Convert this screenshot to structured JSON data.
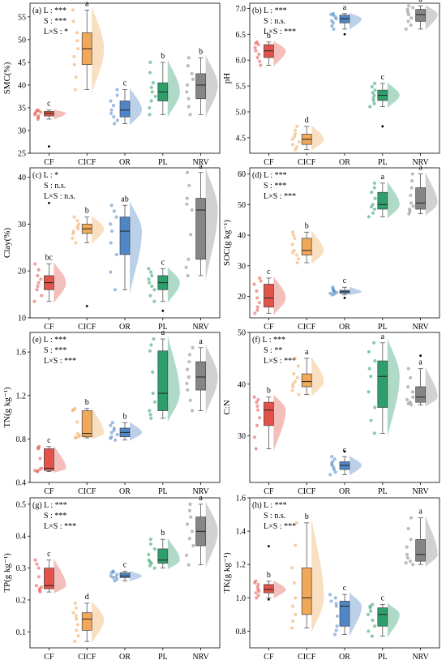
{
  "categories": [
    "CF",
    "CICF",
    "OR",
    "PL",
    "NRV"
  ],
  "colors": {
    "CF": "#e2534b",
    "CICF": "#f0a85a",
    "OR": "#4f86c6",
    "PL": "#2e9e6b",
    "NRV": "#858585"
  },
  "chart_data": [
    {
      "type": "box",
      "panel_label": "(a)",
      "ylabel": "SMC(%)",
      "ylim": [
        25,
        58
      ],
      "yticks": [
        25,
        30,
        35,
        40,
        45,
        50,
        55
      ],
      "stats": [
        "L : ***",
        "S : ***",
        "L×S : *"
      ],
      "categories": [
        "CF",
        "CICF",
        "OR",
        "PL",
        "NRV"
      ],
      "boxes": [
        {
          "q1": 33.2,
          "median": 33.8,
          "q3": 34.2,
          "low": 32.5,
          "high": 34.5,
          "outliers": [
            26.5
          ],
          "letter": "c"
        },
        {
          "q1": 44.5,
          "median": 48,
          "q3": 51.5,
          "low": 39,
          "high": 56.5,
          "outliers": [],
          "letter": "a"
        },
        {
          "q1": 33,
          "median": 34.5,
          "q3": 36.5,
          "low": 31.5,
          "high": 39,
          "outliers": [],
          "letter": "c"
        },
        {
          "q1": 36.5,
          "median": 38.5,
          "q3": 40.5,
          "low": 33.5,
          "high": 45,
          "outliers": [],
          "letter": "b"
        },
        {
          "q1": 37,
          "median": 40,
          "q3": 42.5,
          "low": 33.5,
          "high": 46,
          "outliers": [],
          "letter": "b"
        }
      ]
    },
    {
      "type": "box",
      "panel_label": "(b)",
      "ylabel": "pH",
      "ylim": [
        4.2,
        7.1
      ],
      "yticks": [
        4.5,
        5.0,
        5.5,
        6.0,
        6.5,
        7.0
      ],
      "stats": [
        "L : ***",
        "S : n.s.",
        "L×S : ***"
      ],
      "categories": [
        "CF",
        "CICF",
        "OR",
        "PL",
        "NRV"
      ],
      "boxes": [
        {
          "q1": 6.05,
          "median": 6.18,
          "q3": 6.3,
          "low": 5.9,
          "high": 6.35,
          "outliers": [],
          "letter": "b"
        },
        {
          "q1": 4.37,
          "median": 4.47,
          "q3": 4.57,
          "low": 4.27,
          "high": 4.72,
          "outliers": [],
          "letter": "d"
        },
        {
          "q1": 6.72,
          "median": 6.8,
          "q3": 6.87,
          "low": 6.6,
          "high": 6.9,
          "outliers": [
            6.5
          ],
          "letter": "a"
        },
        {
          "q1": 5.22,
          "median": 5.32,
          "q3": 5.42,
          "low": 5.1,
          "high": 5.55,
          "outliers": [
            4.72
          ],
          "letter": "c"
        },
        {
          "q1": 6.75,
          "median": 6.88,
          "q3": 6.98,
          "low": 6.6,
          "high": 7.05,
          "outliers": [],
          "letter": "a"
        }
      ]
    },
    {
      "type": "box",
      "panel_label": "(c)",
      "ylabel": "Clay(%)",
      "ylim": [
        10,
        42
      ],
      "yticks": [
        10,
        20,
        30,
        40
      ],
      "stats": [
        "L : *",
        "S : n.s.",
        "L×S : n.s."
      ],
      "categories": [
        "CF",
        "CICF",
        "OR",
        "PL",
        "NRV"
      ],
      "boxes": [
        {
          "q1": 16,
          "median": 17.5,
          "q3": 19,
          "low": 13.5,
          "high": 21.5,
          "outliers": [
            34.5
          ],
          "letter": "bc"
        },
        {
          "q1": 28,
          "median": 29,
          "q3": 30,
          "low": 26,
          "high": 31.5,
          "outliers": [
            12.5
          ],
          "letter": "b"
        },
        {
          "q1": 23.5,
          "median": 28.5,
          "q3": 31.5,
          "low": 16,
          "high": 34,
          "outliers": [],
          "letter": "ab"
        },
        {
          "q1": 16,
          "median": 17.5,
          "q3": 19,
          "low": 13.5,
          "high": 20.5,
          "outliers": [
            11.5
          ],
          "letter": "c"
        },
        {
          "q1": 22.5,
          "median": 33,
          "q3": 35.5,
          "low": 19,
          "high": 41,
          "outliers": [],
          "letter": "a"
        }
      ]
    },
    {
      "type": "box",
      "panel_label": "(d)",
      "ylabel": "SOC(g kg⁻¹)",
      "ylim": [
        13,
        62
      ],
      "yticks": [
        20,
        30,
        40,
        50,
        60
      ],
      "stats": [
        "L : ***",
        "S : ***",
        "L×S : ***"
      ],
      "categories": [
        "CF",
        "CICF",
        "OR",
        "PL",
        "NRV"
      ],
      "boxes": [
        {
          "q1": 16.5,
          "median": 19.5,
          "q3": 24,
          "low": 14.5,
          "high": 26,
          "outliers": [],
          "letter": "c"
        },
        {
          "q1": 33.5,
          "median": 35,
          "q3": 39,
          "low": 31,
          "high": 41,
          "outliers": [],
          "letter": "b"
        },
        {
          "q1": 21,
          "median": 21.5,
          "q3": 22,
          "low": 20.5,
          "high": 23,
          "outliers": [
            19.5
          ],
          "letter": "c"
        },
        {
          "q1": 48.5,
          "median": 50,
          "q3": 54,
          "low": 46,
          "high": 57,
          "outliers": [],
          "letter": "a"
        },
        {
          "q1": 48.5,
          "median": 50.5,
          "q3": 55.5,
          "low": 47,
          "high": 60,
          "outliers": [],
          "letter": "a"
        }
      ]
    },
    {
      "type": "box",
      "panel_label": "(e)",
      "ylabel": "TN(g kg⁻¹)",
      "ylim": [
        0.4,
        1.78
      ],
      "yticks": [
        0.4,
        0.8,
        1.2,
        1.6
      ],
      "stats": [
        "L : ***",
        "S : ***",
        "L×S : ***"
      ],
      "categories": [
        "CF",
        "CICF",
        "OR",
        "PL",
        "NRV"
      ],
      "boxes": [
        {
          "q1": 0.51,
          "median": 0.53,
          "q3": 0.71,
          "low": 0.5,
          "high": 0.73,
          "outliers": [],
          "letter": "c"
        },
        {
          "q1": 0.82,
          "median": 0.85,
          "q3": 1.06,
          "low": 0.81,
          "high": 1.08,
          "outliers": [],
          "letter": "b"
        },
        {
          "q1": 0.82,
          "median": 0.86,
          "q3": 0.9,
          "low": 0.79,
          "high": 0.95,
          "outliers": [],
          "letter": "b"
        },
        {
          "q1": 1.06,
          "median": 1.22,
          "q3": 1.61,
          "low": 0.99,
          "high": 1.72,
          "outliers": [],
          "letter": "a"
        },
        {
          "q1": 1.25,
          "median": 1.37,
          "q3": 1.51,
          "low": 1.06,
          "high": 1.64,
          "outliers": [],
          "letter": "a"
        }
      ]
    },
    {
      "type": "box",
      "panel_label": "(f)",
      "ylabel": "C:N",
      "ylim": [
        21,
        50
      ],
      "yticks": [
        30,
        40,
        50
      ],
      "stats": [
        "L : ***",
        "S : **",
        "L×S : ***"
      ],
      "categories": [
        "CF",
        "CICF",
        "OR",
        "PL",
        "NRV"
      ],
      "boxes": [
        {
          "q1": 32,
          "median": 35,
          "q3": 36.5,
          "low": 27.5,
          "high": 37.5,
          "outliers": [],
          "letter": "b"
        },
        {
          "q1": 39.5,
          "median": 40.5,
          "q3": 42,
          "low": 38,
          "high": 45,
          "outliers": [],
          "letter": "a"
        },
        {
          "q1": 23.5,
          "median": 24.3,
          "q3": 25,
          "low": 22.5,
          "high": 26,
          "outliers": [
            27
          ],
          "letter": "c"
        },
        {
          "q1": 35.5,
          "median": 41.5,
          "q3": 44.5,
          "low": 30.5,
          "high": 48,
          "outliers": [],
          "letter": "a"
        },
        {
          "q1": 36.5,
          "median": 37.5,
          "q3": 39.5,
          "low": 36,
          "high": 43,
          "outliers": [
            45.5
          ],
          "letter": "a"
        }
      ]
    },
    {
      "type": "box",
      "panel_label": "(g)",
      "ylabel": "TP(g kg⁻¹)",
      "ylim": [
        0.05,
        0.52
      ],
      "yticks": [
        0.1,
        0.2,
        0.3,
        0.4,
        0.5
      ],
      "stats": [
        "L : ***",
        "S : ***",
        "L×S : ***"
      ],
      "categories": [
        "CF",
        "CICF",
        "OR",
        "PL",
        "NRV"
      ],
      "boxes": [
        {
          "q1": 0.235,
          "median": 0.245,
          "q3": 0.3,
          "low": 0.225,
          "high": 0.325,
          "outliers": [],
          "letter": "c"
        },
        {
          "q1": 0.105,
          "median": 0.14,
          "q3": 0.16,
          "low": 0.07,
          "high": 0.19,
          "outliers": [],
          "letter": "d"
        },
        {
          "q1": 0.27,
          "median": 0.275,
          "q3": 0.285,
          "low": 0.26,
          "high": 0.29,
          "outliers": [],
          "letter": "c"
        },
        {
          "q1": 0.315,
          "median": 0.325,
          "q3": 0.36,
          "low": 0.3,
          "high": 0.39,
          "outliers": [],
          "letter": "b"
        },
        {
          "q1": 0.37,
          "median": 0.415,
          "q3": 0.46,
          "low": 0.31,
          "high": 0.5,
          "outliers": [],
          "letter": "a"
        }
      ]
    },
    {
      "type": "box",
      "panel_label": "(h)",
      "ylabel": "TK(g kg⁻¹)",
      "ylim": [
        0.7,
        1.6
      ],
      "yticks": [
        0.8,
        1.0,
        1.2,
        1.4,
        1.6
      ],
      "stats": [
        "L : ***",
        "S : n.s.",
        "L×S : ***"
      ],
      "categories": [
        "CF",
        "CICF",
        "OR",
        "PL",
        "NRV"
      ],
      "boxes": [
        {
          "q1": 1.03,
          "median": 1.05,
          "q3": 1.08,
          "low": 1.0,
          "high": 1.1,
          "outliers": [
            0.99,
            1.31
          ],
          "letter": "b"
        },
        {
          "q1": 0.9,
          "median": 1.0,
          "q3": 1.18,
          "low": 0.82,
          "high": 1.45,
          "outliers": [],
          "letter": "b"
        },
        {
          "q1": 0.83,
          "median": 0.95,
          "q3": 0.98,
          "low": 0.78,
          "high": 1.02,
          "outliers": [],
          "letter": "c"
        },
        {
          "q1": 0.83,
          "median": 0.9,
          "q3": 0.94,
          "low": 0.77,
          "high": 0.96,
          "outliers": [],
          "letter": "c"
        },
        {
          "q1": 1.22,
          "median": 1.26,
          "q3": 1.35,
          "low": 1.2,
          "high": 1.48,
          "outliers": [],
          "letter": "a"
        }
      ]
    }
  ]
}
